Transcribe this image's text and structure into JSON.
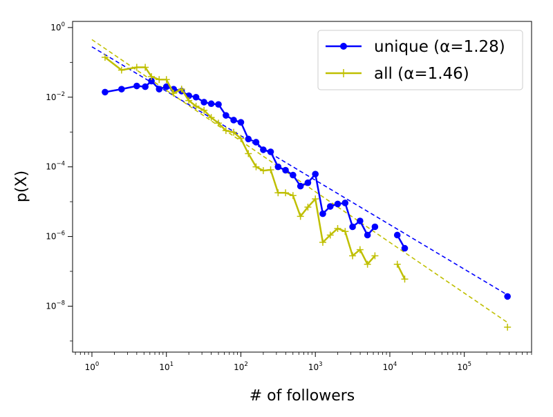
{
  "chart_data": {
    "type": "scatter",
    "title": "",
    "xlabel": "# of followers",
    "ylabel": "p(X)",
    "xscale": "log",
    "yscale": "log",
    "xlim": [
      0.55,
      800000
    ],
    "ylim": [
      4.8e-10,
      1.5
    ],
    "x_ticks": [
      {
        "value": 1,
        "base": "10",
        "exp": "0"
      },
      {
        "value": 10,
        "base": "10",
        "exp": "1"
      },
      {
        "value": 100,
        "base": "10",
        "exp": "2"
      },
      {
        "value": 1000,
        "base": "10",
        "exp": "3"
      },
      {
        "value": 10000,
        "base": "10",
        "exp": "4"
      },
      {
        "value": 100000,
        "base": "10",
        "exp": "5"
      }
    ],
    "y_ticks": [
      {
        "value": 1,
        "base": "10",
        "exp": "0"
      },
      {
        "value": 0.01,
        "base": "10",
        "exp": "−2"
      },
      {
        "value": 0.0001,
        "base": "10",
        "exp": "−4"
      },
      {
        "value": 1e-06,
        "base": "10",
        "exp": "−6"
      },
      {
        "value": 1e-08,
        "base": "10",
        "exp": "−8"
      }
    ],
    "grid": false,
    "legend_position": "top-right",
    "series": [
      {
        "name": "unique (α=1.28)",
        "color": "#0000ff",
        "marker": "circle",
        "x": [
          1.5,
          2.5,
          4,
          5.2,
          6.3,
          8,
          10,
          12.5,
          16,
          20,
          25,
          32,
          40,
          50,
          63,
          80,
          100,
          126,
          160,
          200,
          251,
          316,
          398,
          501,
          631,
          794,
          1000,
          1259,
          1585,
          1995,
          2512,
          3162,
          3981,
          5012,
          6310,
          7943,
          12589,
          15849
        ],
        "y": [
          0.014,
          0.017,
          0.021,
          0.02,
          0.029,
          0.017,
          0.02,
          0.017,
          0.015,
          0.011,
          0.01,
          0.0072,
          0.0065,
          0.0062,
          0.003,
          0.0022,
          0.0019,
          0.00063,
          0.00051,
          0.00031,
          0.00027,
          0.0001,
          8e-05,
          5.8e-05,
          2.8e-05,
          3.5e-05,
          6.2e-05,
          4.5e-06,
          7.3e-06,
          8.6e-06,
          9.2e-06,
          1.9e-06,
          2.8e-06,
          1.1e-06,
          1.9e-06,
          null,
          1.1e-06,
          4.6e-07
        ]
      },
      {
        "name": "all (α=1.46)",
        "color": "#bfbf00",
        "marker": "plus",
        "x": [
          1.5,
          2.5,
          4,
          5.2,
          6.3,
          8,
          10,
          12.5,
          16,
          20,
          25,
          32,
          40,
          50,
          63,
          80,
          100,
          126,
          160,
          200,
          251,
          316,
          398,
          501,
          631,
          794,
          1000,
          1259,
          1585,
          1995,
          2512,
          3162,
          3981,
          5012,
          6310,
          7943,
          12589,
          15849
        ],
        "y": [
          0.14,
          0.06,
          0.072,
          0.072,
          0.039,
          0.032,
          0.032,
          0.013,
          0.017,
          0.008,
          0.0055,
          0.0042,
          0.0026,
          0.0018,
          0.0011,
          0.00098,
          0.00065,
          0.00024,
          0.0001,
          7.8e-05,
          8.2e-05,
          1.8e-05,
          1.8e-05,
          1.5e-05,
          3.8e-06,
          7e-06,
          1.2e-05,
          6.8e-07,
          1.1e-06,
          1.7e-06,
          1.4e-06,
          2.8e-07,
          4.2e-07,
          1.6e-07,
          2.8e-07,
          null,
          1.6e-07,
          6e-08
        ]
      }
    ],
    "outliers": [
      {
        "series": 0,
        "x": 380000,
        "y": 1.9e-08
      },
      {
        "series": 1,
        "x": 380000,
        "y": 2.5e-09
      }
    ],
    "fit_lines": [
      {
        "series": 0,
        "color": "#0000ff",
        "x": [
          1,
          380000
        ],
        "y": [
          0.28,
          2.1e-08
        ]
      },
      {
        "series": 1,
        "color": "#bfbf00",
        "x": [
          1,
          380000
        ],
        "y": [
          0.45,
          3.4e-09
        ]
      }
    ]
  }
}
